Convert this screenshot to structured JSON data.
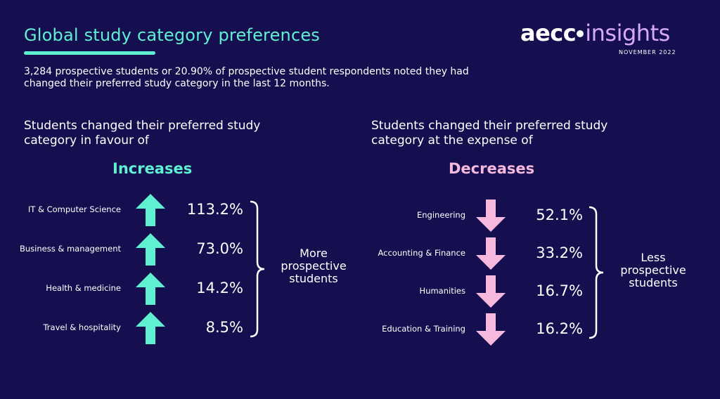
{
  "title": "Global study category preferences",
  "logo": {
    "brand": "aecc",
    "product": "insights",
    "date": "NOVEMBER 2022"
  },
  "intro": "3,284 prospective students or 20.90% of prospective student respondents noted they had changed their preferred study category in the last 12 months.",
  "increases": {
    "heading": "Students changed their preferred study category in favour of",
    "label": "Increases",
    "brace_text": "More prospective students"
  },
  "decreases": {
    "heading": "Students changed their preferred study category at the expense of",
    "label": "Decreases",
    "brace_text": "Less prospective students"
  },
  "colors": {
    "background": "#150f4f",
    "accent": "#5ff0d2",
    "decrease": "#f7b8dd",
    "text": "#ffffff"
  },
  "chart_data": [
    {
      "type": "table",
      "name": "Increases",
      "categories": [
        "IT & Computer Science",
        "Business & management",
        "Health & medicine",
        "Travel & hospitality"
      ],
      "values": [
        113.2,
        73.0,
        14.2,
        8.5
      ],
      "value_labels": [
        "113.2%",
        "73.0%",
        "14.2%",
        "8.5%"
      ],
      "icon": "arrow-up-icon"
    },
    {
      "type": "table",
      "name": "Decreases",
      "categories": [
        "Engineering",
        "Accounting & Finance",
        "Humanities",
        "Education & Training"
      ],
      "values": [
        52.1,
        33.2,
        16.7,
        16.2
      ],
      "value_labels": [
        "52.1%",
        "33.2%",
        "16.7%",
        "16.2%"
      ],
      "icon": "arrow-down-icon"
    }
  ]
}
